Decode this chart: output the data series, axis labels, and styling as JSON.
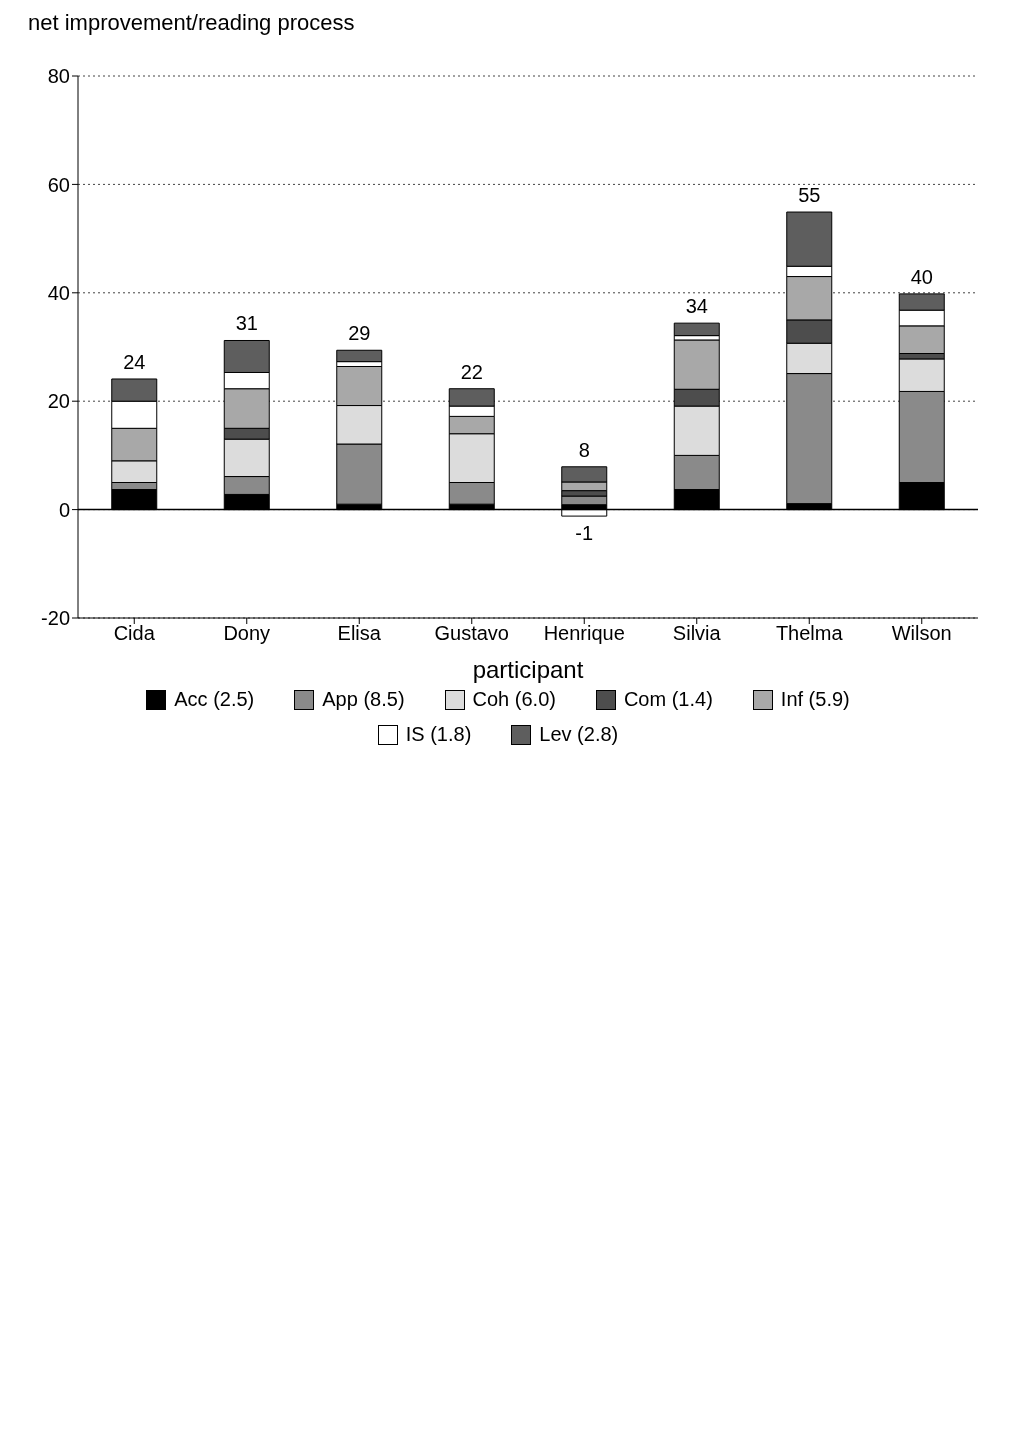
{
  "chart_data": {
    "type": "bar",
    "stacked": true,
    "xlabel": "participant",
    "ylabel": "net improvement/reading process",
    "categories": [
      "Cida",
      "Dony",
      "Elisa",
      "Gustavo",
      "Henrique",
      "Silvia",
      "Thelma",
      "Wilson"
    ],
    "series": [
      {
        "name": "Acc (2.5)",
        "color": "#000000",
        "values": [
          3.7,
          2.8,
          1.0,
          1.0,
          0.9,
          3.7,
          1.1,
          5.0
        ]
      },
      {
        "name": "App (8.5)",
        "color": "#8a8a8a",
        "values": [
          1.3,
          3.3,
          11.1,
          4.0,
          1.6,
          6.3,
          24.0,
          16.8
        ]
      },
      {
        "name": "Coh (6.0)",
        "color": "#dcdcdc",
        "values": [
          4.0,
          6.9,
          7.1,
          9.0,
          null,
          9.1,
          5.6,
          6.0
        ]
      },
      {
        "name": "Com (1.4)",
        "color": "#4d4d4d",
        "values": [
          null,
          2.0,
          null,
          null,
          1.0,
          3.1,
          4.3,
          1.0
        ]
      },
      {
        "name": "Inf (5.9)",
        "color": "#a8a8a8",
        "values": [
          6.0,
          7.3,
          7.2,
          3.2,
          1.6,
          9.1,
          8.0,
          5.1
        ]
      },
      {
        "name": "IS (1.8)",
        "color": "#ffffff",
        "values": [
          5.0,
          3.0,
          0.9,
          1.9,
          -1.2,
          0.8,
          1.9,
          2.9
        ]
      },
      {
        "name": "Lev (2.8)",
        "color": "#5e5e5e",
        "values": [
          4.1,
          5.9,
          2.1,
          3.2,
          2.8,
          2.3,
          10.0,
          3.0
        ]
      }
    ],
    "totals": [
      "24",
      "31",
      "29",
      "22",
      "8",
      "34",
      "55",
      "40"
    ],
    "annotations": [
      {
        "text": "-1",
        "x": "Henrique",
        "y": -1.2
      }
    ],
    "ylim": [
      -20,
      80
    ],
    "yticks": [
      -20,
      0,
      20,
      40,
      60,
      80
    ],
    "ref_lines": [
      {
        "axis": "y",
        "value": 0
      }
    ],
    "grid": "y",
    "legend": "bottom"
  }
}
